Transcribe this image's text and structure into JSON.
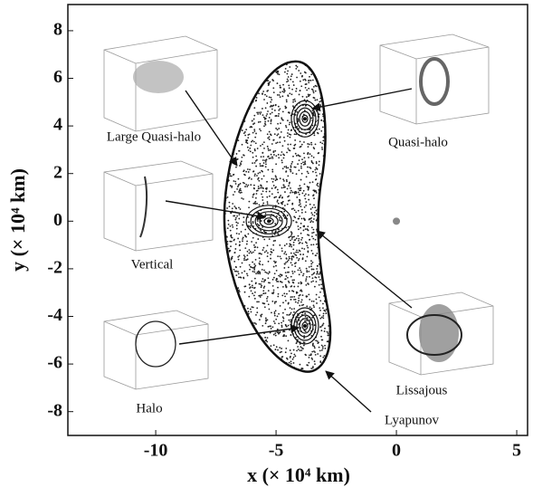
{
  "chart_data": {
    "type": "scatter",
    "x_label": "x (× 10⁴ km)",
    "y_label": "y (× 10⁴ km)",
    "x": [
      -3.8,
      -5.3,
      -3.8,
      0
    ],
    "values": [
      4.3,
      0,
      -4.4,
      0
    ],
    "color": "#111111",
    "xlim": [
      -13.65,
      5.45
    ],
    "ylim": [
      -9,
      9.1
    ],
    "xticks": [
      -10,
      -5,
      0,
      5
    ],
    "yticks": [
      -8,
      -6,
      -4,
      -2,
      0,
      2,
      4,
      6,
      8
    ],
    "annotations": [
      "Large Quasi-halo",
      "Quasi-halo",
      "Vertical",
      "Halo",
      "Lissajous",
      "Lyapunov"
    ]
  }
}
